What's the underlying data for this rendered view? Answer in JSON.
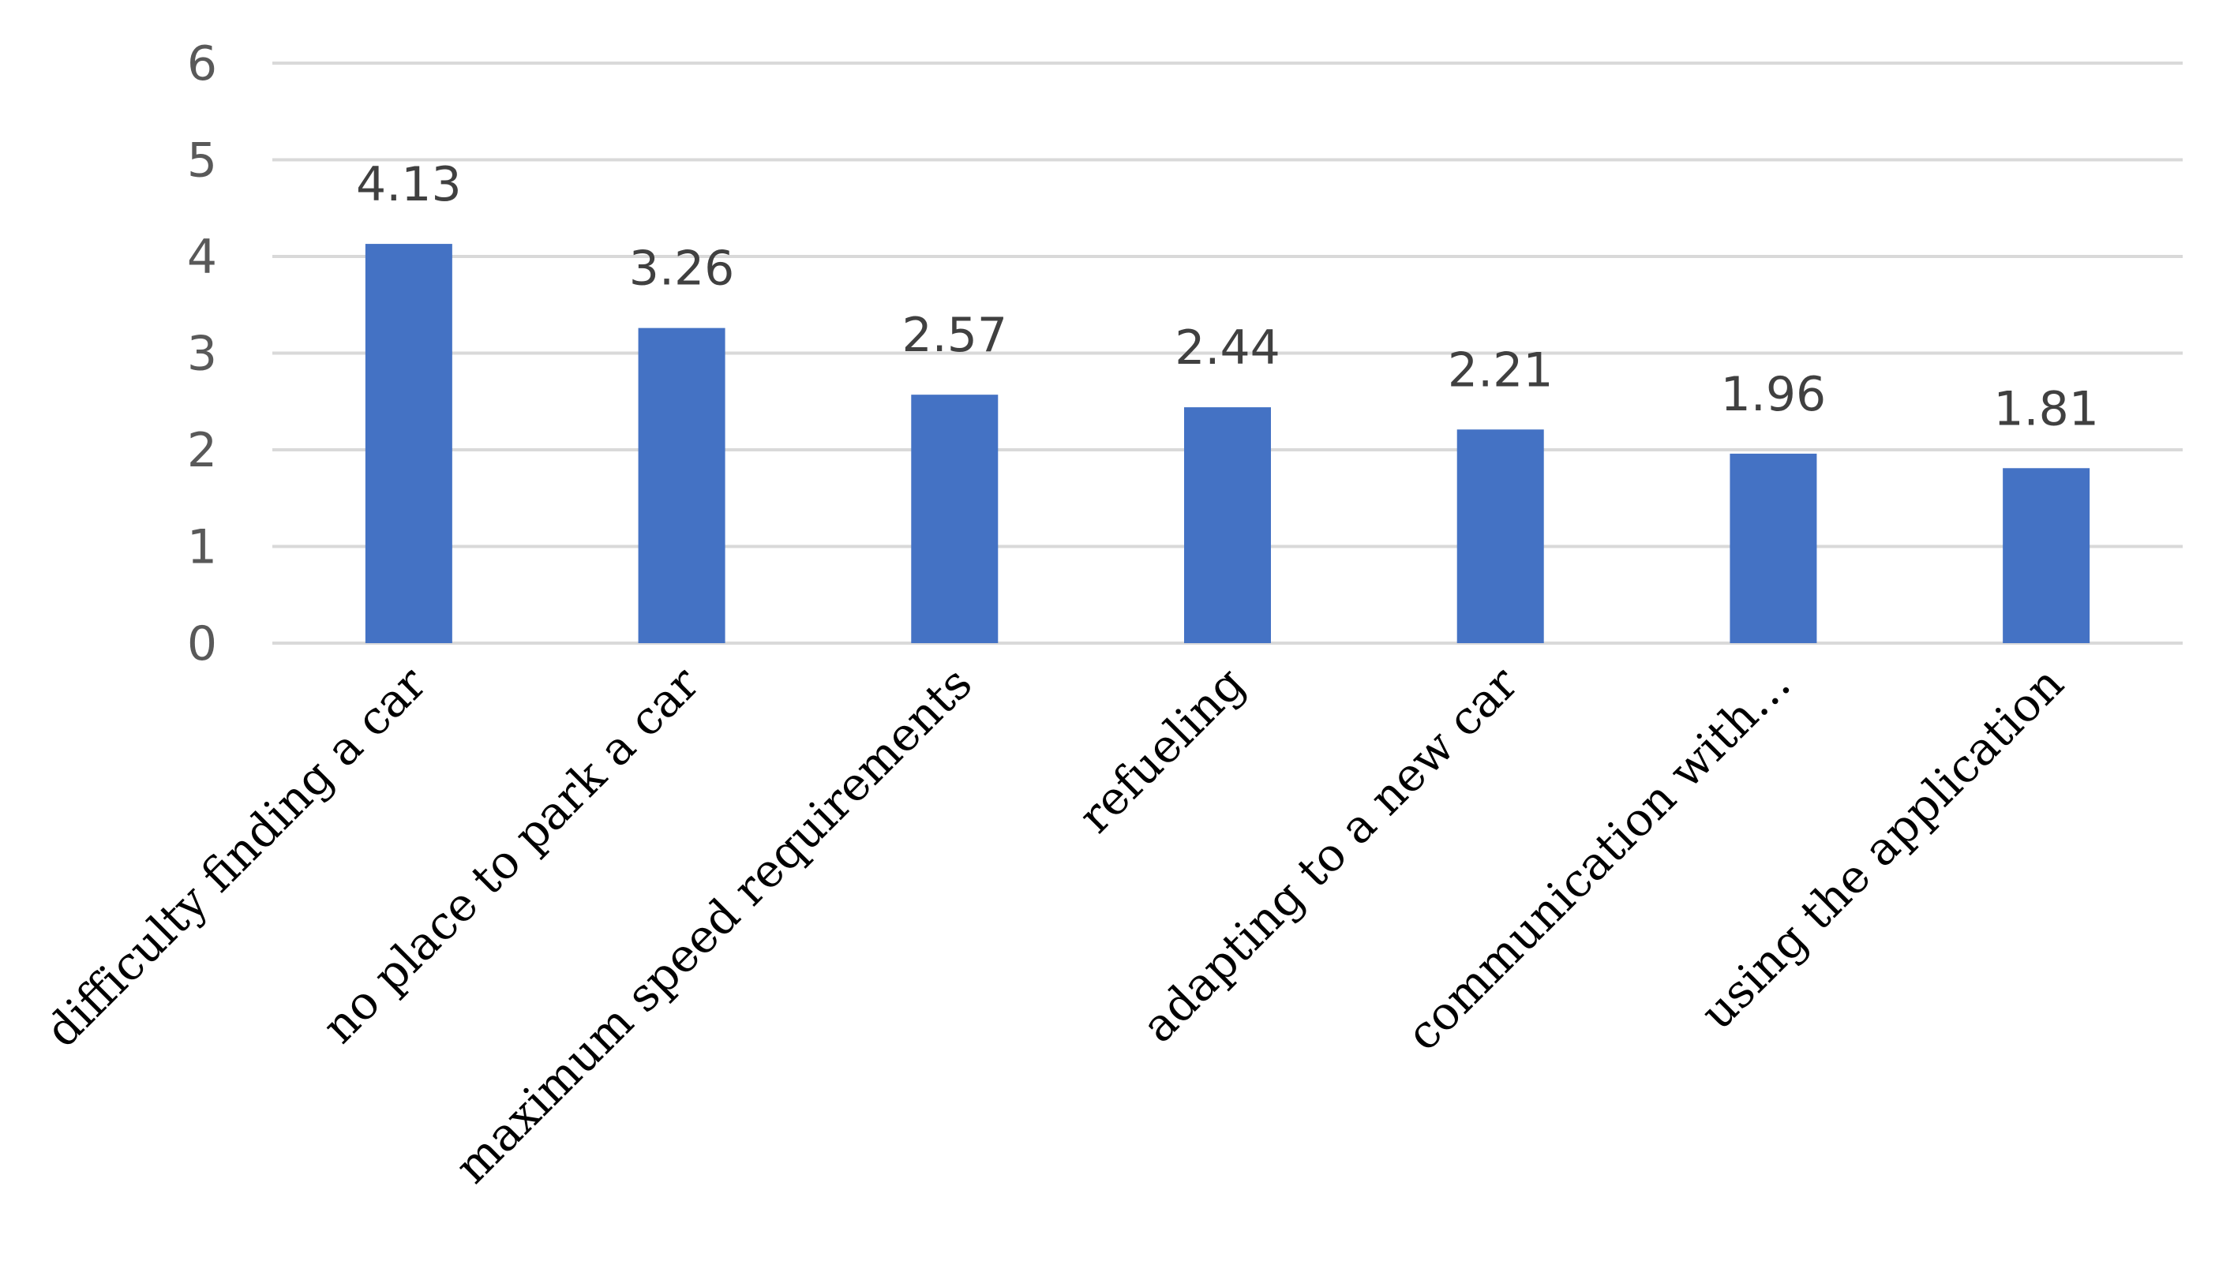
{
  "chart_data": {
    "type": "bar",
    "title": "",
    "xlabel": "",
    "ylabel": "",
    "categories": [
      "difficulty finding a car",
      "no place to park a car",
      "maximum speed requirements",
      "refueling",
      "adapting to a new car",
      "communication with…",
      "using the application"
    ],
    "values": [
      4.13,
      3.26,
      2.57,
      2.44,
      2.21,
      1.96,
      1.81
    ],
    "data_labels": [
      "4.13",
      "3.26",
      "2.57",
      "2.44",
      "2.21",
      "1.96",
      "1.81"
    ],
    "ylim": [
      0,
      6
    ],
    "yticks": [
      0,
      1,
      2,
      3,
      4,
      5,
      6
    ],
    "grid": true,
    "legend": "none",
    "colors": {
      "bar": "#4472C4",
      "grid": "#D9D9D9",
      "tick_text": "#595959",
      "label_text": "#404040"
    }
  }
}
